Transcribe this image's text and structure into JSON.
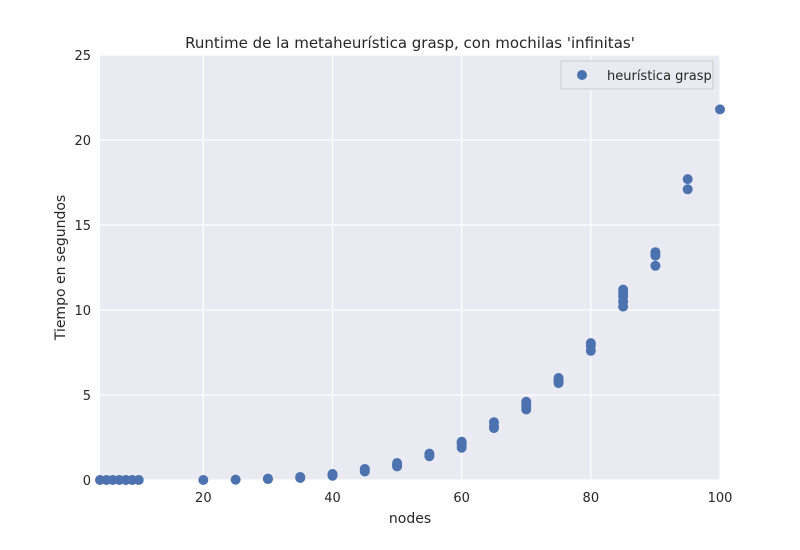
{
  "chart_data": {
    "type": "scatter",
    "title": "Runtime de la metaheurística grasp, con mochilas 'infinitas'",
    "xlabel": "nodes",
    "ylabel": "Tiempo en segundos",
    "xlim": [
      4,
      100
    ],
    "ylim": [
      0,
      25
    ],
    "xticks": [
      20,
      40,
      60,
      80,
      100
    ],
    "yticks": [
      0,
      5,
      10,
      15,
      20,
      25
    ],
    "grid": true,
    "legend_position": "top-right",
    "colors": {
      "background": "#eaeaf2",
      "grid": "#ffffff",
      "series": "#4c72b0"
    },
    "series": [
      {
        "name": "heurística grasp",
        "points": [
          [
            4,
            0.0
          ],
          [
            5,
            0.0
          ],
          [
            6,
            0.0
          ],
          [
            7,
            0.0
          ],
          [
            8,
            0.0
          ],
          [
            9,
            0.0
          ],
          [
            10,
            0.0
          ],
          [
            20,
            0.0
          ],
          [
            25,
            0.02
          ],
          [
            30,
            0.05
          ],
          [
            30,
            0.08
          ],
          [
            35,
            0.12
          ],
          [
            35,
            0.18
          ],
          [
            40,
            0.25
          ],
          [
            40,
            0.3
          ],
          [
            40,
            0.35
          ],
          [
            45,
            0.5
          ],
          [
            45,
            0.6
          ],
          [
            45,
            0.65
          ],
          [
            50,
            0.8
          ],
          [
            50,
            0.9
          ],
          [
            50,
            1.0
          ],
          [
            55,
            1.4
          ],
          [
            55,
            1.5
          ],
          [
            55,
            1.55
          ],
          [
            60,
            1.9
          ],
          [
            60,
            2.1
          ],
          [
            60,
            2.2
          ],
          [
            60,
            2.25
          ],
          [
            65,
            3.05
          ],
          [
            65,
            3.15
          ],
          [
            65,
            3.4
          ],
          [
            70,
            4.15
          ],
          [
            70,
            4.3
          ],
          [
            70,
            4.45
          ],
          [
            70,
            4.6
          ],
          [
            75,
            5.7
          ],
          [
            75,
            5.85
          ],
          [
            75,
            6.0
          ],
          [
            80,
            7.6
          ],
          [
            80,
            7.9
          ],
          [
            80,
            8.05
          ],
          [
            85,
            10.2
          ],
          [
            85,
            10.5
          ],
          [
            85,
            10.8
          ],
          [
            85,
            11.0
          ],
          [
            85,
            11.2
          ],
          [
            90,
            12.6
          ],
          [
            90,
            13.2
          ],
          [
            90,
            13.4
          ],
          [
            95,
            17.1
          ],
          [
            95,
            17.7
          ],
          [
            100,
            21.8
          ]
        ]
      }
    ]
  }
}
